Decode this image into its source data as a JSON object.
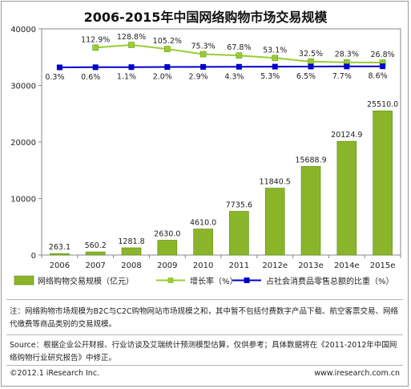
{
  "title": "2006-2015年中国网络购物市场交易规模",
  "chart_data": {
    "type": "bar",
    "categories": [
      "2006",
      "2007",
      "2008",
      "2009",
      "2010",
      "2011",
      "2012e",
      "2013e",
      "2014e",
      "2015e"
    ],
    "series": [
      {
        "name": "网络购物交易规模（亿元）",
        "type": "bar",
        "axis": "left",
        "values": [
          263.1,
          560.2,
          1281.8,
          2630.0,
          4610.0,
          7735.6,
          11840.5,
          15688.9,
          20124.9,
          25510.0
        ],
        "labels": [
          "263.1",
          "560.2",
          "1281.8",
          "2630.0",
          "4610.0",
          "7735.6",
          "11840.5",
          "15688.9",
          "20124.9",
          "25510.0"
        ],
        "color": "#8ab52a"
      },
      {
        "name": "增长率（%）",
        "type": "line",
        "axis": "right",
        "values": [
          null,
          112.9,
          128.8,
          105.2,
          75.3,
          67.8,
          53.1,
          32.5,
          28.3,
          26.8
        ],
        "labels": [
          "",
          "112.9%",
          "128.8%",
          "105.2%",
          "75.3%",
          "67.8%",
          "53.1%",
          "32.5%",
          "28.3%",
          "26.8%"
        ],
        "color": "#9acd32"
      },
      {
        "name": "占社会消费品零售总额的比重（%）",
        "type": "line",
        "axis": "right",
        "values": [
          0.3,
          0.6,
          1.1,
          2.0,
          2.9,
          4.3,
          5.3,
          6.5,
          7.7,
          8.6
        ],
        "labels": [
          "0.3%",
          "0.6%",
          "1.1%",
          "2.0%",
          "2.9%",
          "4.3%",
          "5.3%",
          "6.5%",
          "7.7%",
          "8.6%"
        ],
        "color": "#0000cc"
      }
    ],
    "ylim": [
      0,
      40000
    ],
    "yticks": [
      "0",
      "10000",
      "20000",
      "30000",
      "40000"
    ],
    "legend_position": "bottom"
  },
  "notes": {
    "note": "注：网络购物市场规模为B2C与C2C购物网站市场规模之和，其中暂不包括付费数字产品下载、航空客票交易、网络代缴费等商品类别的交易规模。",
    "source": "Source：根据企业公开财报、行业访谈及艾瑞统计预测模型估算，仅供参考；具体数据将在《2011-2012年中国网络购物行业研究报告》中修正。"
  },
  "footer": {
    "copyright": "©2012.1 iResearch Inc.",
    "website": "www.iresearch.com.cn"
  }
}
